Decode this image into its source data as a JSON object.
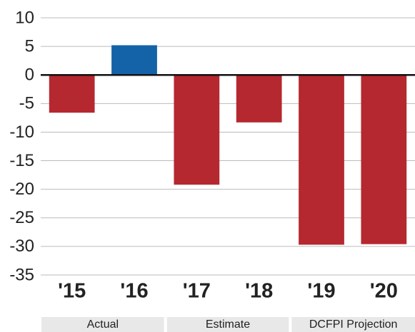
{
  "chart_data": {
    "type": "bar",
    "categories": [
      "'15",
      "'16",
      "'17",
      "'18",
      "'19",
      "'20"
    ],
    "values": [
      -6.6,
      5.2,
      -19.2,
      -8.3,
      -29.7,
      -29.6
    ],
    "colors": [
      "#b5282f",
      "#1462a8",
      "#b5282f",
      "#b5282f",
      "#b5282f",
      "#b5282f"
    ],
    "ylim": [
      -35,
      10
    ],
    "yticks": [
      -35,
      -30,
      -25,
      -20,
      -15,
      -10,
      -5,
      0,
      5,
      10
    ],
    "grid": true,
    "groups": [
      {
        "name": "Actual",
        "span": 2
      },
      {
        "name": "Estimate",
        "span": 2
      },
      {
        "name": "DCFPI Projection",
        "span": 2
      }
    ]
  }
}
